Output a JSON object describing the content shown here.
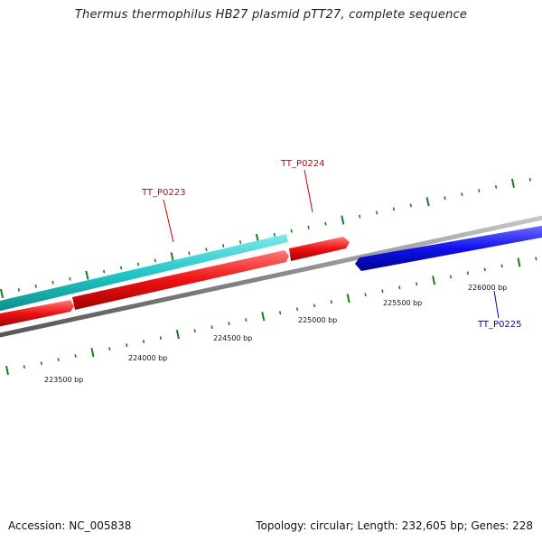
{
  "title": "Thermus thermophilus HB27 plasmid pTT27, complete sequence",
  "accession_text": "Accession: NC_005838",
  "topology_text": "Topology: circular; Length: 232,605 bp; Genes: 228",
  "ruler": {
    "labels": [
      "223500 bp",
      "224000 bp",
      "224500 bp",
      "225000 bp",
      "225500 bp",
      "226000 bp"
    ]
  },
  "genes": [
    {
      "name": "TT_P0223",
      "color": "#cc0000"
    },
    {
      "name": "TT_P0224",
      "color": "#cc0000"
    },
    {
      "name": "TT_P0225",
      "color": "#0000cc"
    }
  ],
  "colors": {
    "backbone": "#888888",
    "tick": "#1f7a1f",
    "cyan_feature": "#22c7c7",
    "red_feature": "#ee1111",
    "blue_feature": "#1111ee"
  }
}
